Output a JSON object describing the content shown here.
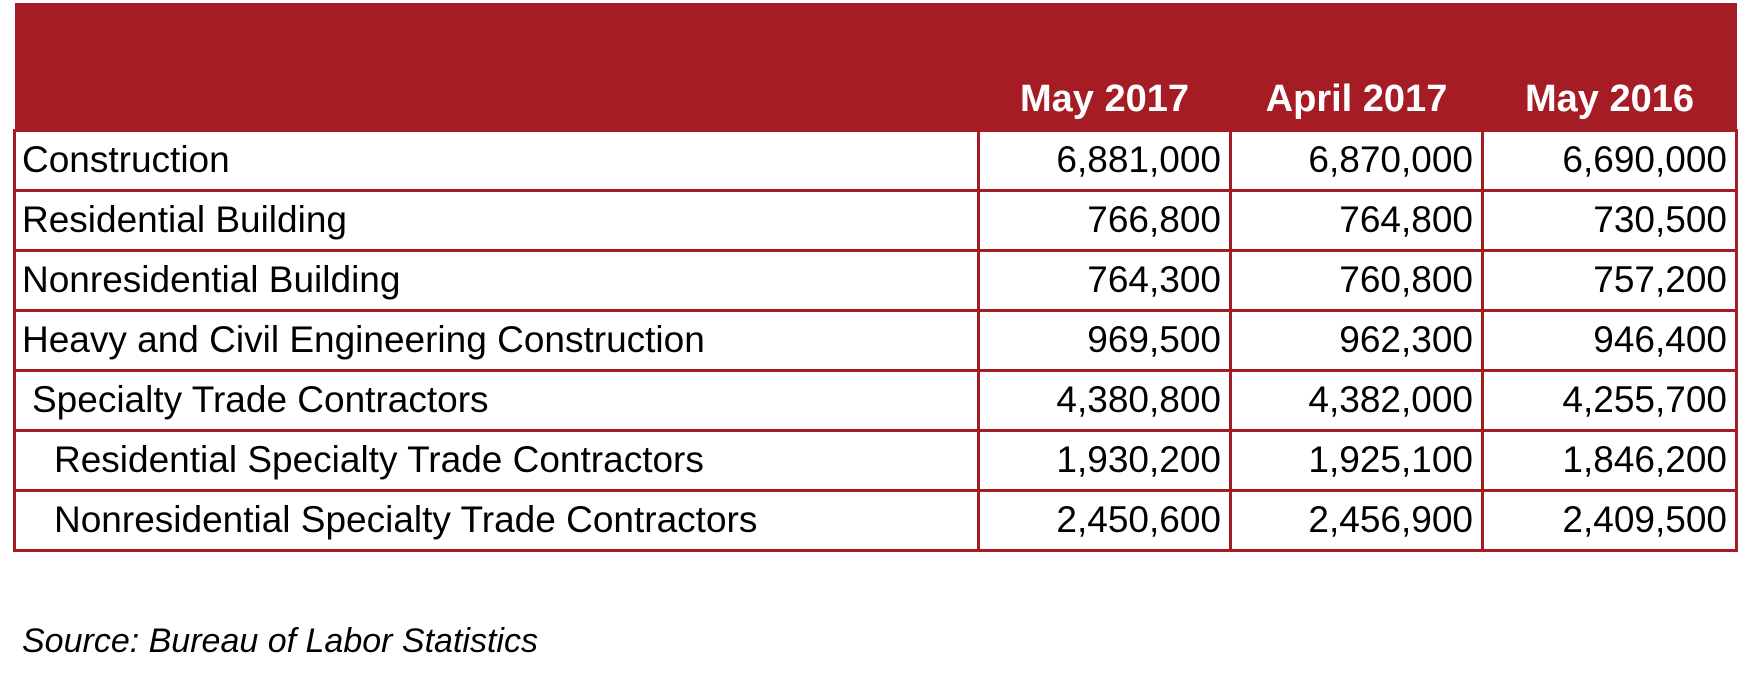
{
  "table": {
    "header_color": "#a61c24",
    "columns": [
      "May 2017",
      "April 2017",
      "May 2016"
    ],
    "rows": [
      {
        "label": "Construction",
        "indent": 0,
        "values": [
          "6,881,000",
          "6,870,000",
          "6,690,000"
        ]
      },
      {
        "label": "Residential Building",
        "indent": 0,
        "values": [
          "766,800",
          "764,800",
          "730,500"
        ]
      },
      {
        "label": "Nonresidential Building",
        "indent": 0,
        "values": [
          "764,300",
          "760,800",
          "757,200"
        ]
      },
      {
        "label": "Heavy and Civil Engineering Construction",
        "indent": 0,
        "values": [
          "969,500",
          "962,300",
          "946,400"
        ]
      },
      {
        "label": "Specialty Trade Contractors",
        "indent": 1,
        "values": [
          "4,380,800",
          "4,382,000",
          "4,255,700"
        ]
      },
      {
        "label": "Residential Specialty Trade Contractors",
        "indent": 2,
        "values": [
          "1,930,200",
          "1,925,100",
          "1,846,200"
        ]
      },
      {
        "label": "Nonresidential Specialty Trade Contractors",
        "indent": 2,
        "values": [
          "2,450,600",
          "2,456,900",
          "2,409,500"
        ]
      }
    ]
  },
  "source": "Source: Bureau of Labor Statistics"
}
